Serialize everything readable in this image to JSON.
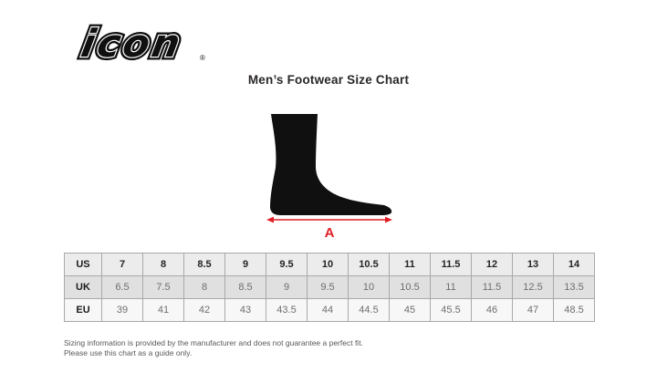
{
  "logo": {
    "text": "icon",
    "registered": "®"
  },
  "title": "Men’s Footwear Size Chart",
  "diagram": {
    "measurement_label": "A"
  },
  "chart_data": {
    "type": "table",
    "title": "Men’s Footwear Size Chart",
    "columns_per_row": 12,
    "rows": [
      {
        "label": "US",
        "values": [
          "7",
          "8",
          "8.5",
          "9",
          "9.5",
          "10",
          "10.5",
          "11",
          "11.5",
          "12",
          "13",
          "14"
        ]
      },
      {
        "label": "UK",
        "values": [
          "6.5",
          "7.5",
          "8",
          "8.5",
          "9",
          "9.5",
          "10",
          "10.5",
          "11",
          "11.5",
          "12.5",
          "13.5"
        ]
      },
      {
        "label": "EU",
        "values": [
          "39",
          "41",
          "42",
          "43",
          "43.5",
          "44",
          "44.5",
          "45",
          "45.5",
          "46",
          "47",
          "48.5"
        ]
      }
    ]
  },
  "footer": {
    "line1": "Sizing information is provided by the manufacturer and does not guarantee a perfect fit.",
    "line2": "Please use this chart as a guide only."
  },
  "colors": {
    "accent_red": "#e11f26",
    "silhouette_black": "#101010",
    "row_us_bg": "#ececec",
    "row_uk_bg": "#e0e0e0",
    "row_eu_bg": "#f7f7f7",
    "table_border": "#a9a9a9"
  }
}
